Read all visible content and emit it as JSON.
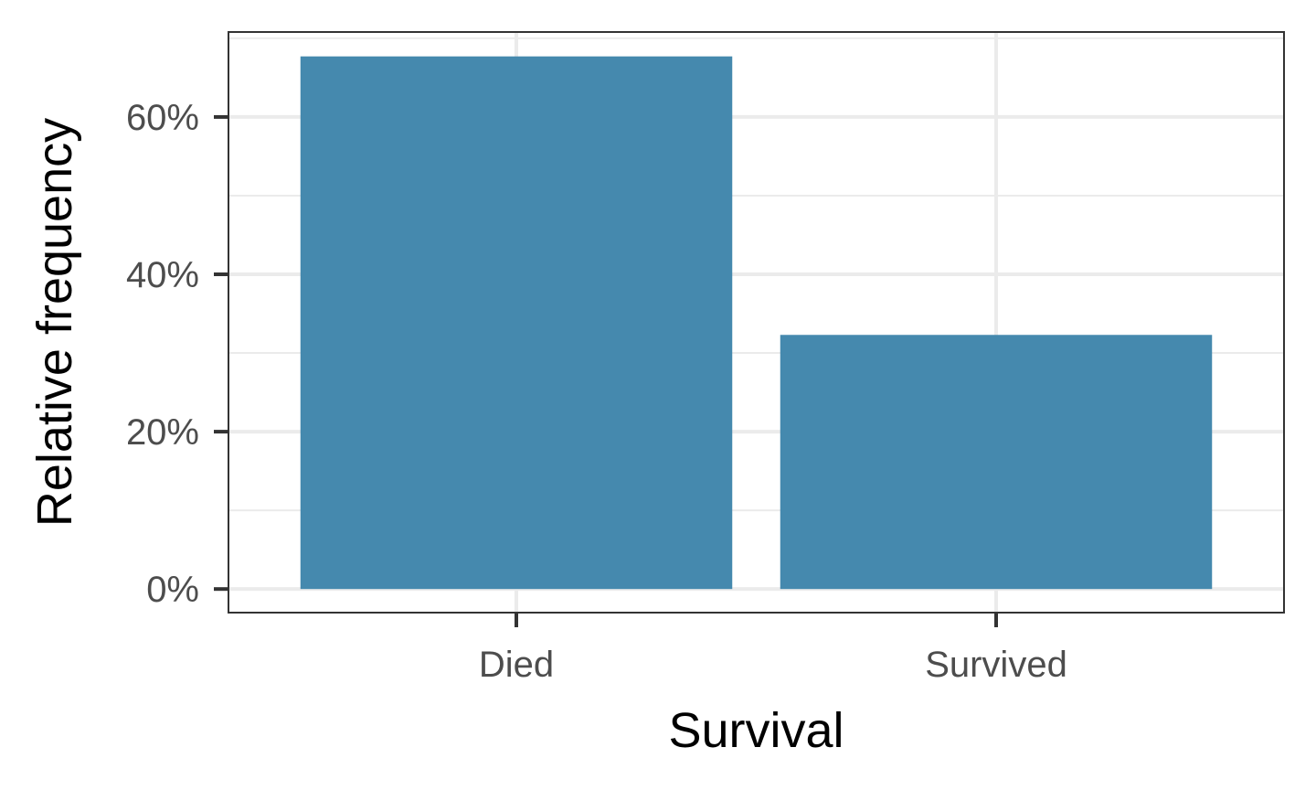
{
  "chart_data": {
    "type": "bar",
    "title": "",
    "xlabel": "Survival",
    "ylabel": "Relative frequency",
    "categories": [
      "Died",
      "Survived"
    ],
    "values": [
      0.677,
      0.323
    ],
    "ylim": [
      -0.03,
      0.708
    ],
    "y_ticks": [
      0,
      0.2,
      0.4,
      0.6
    ],
    "y_tick_labels": [
      "0%",
      "20%",
      "40%",
      "60%"
    ],
    "y_minor_ticks": [
      0.1,
      0.3,
      0.5,
      0.7
    ],
    "grid": true,
    "bar_color": "#4589AE",
    "grid_color": "#EBEBEB",
    "panel_border_color": "#333333"
  }
}
